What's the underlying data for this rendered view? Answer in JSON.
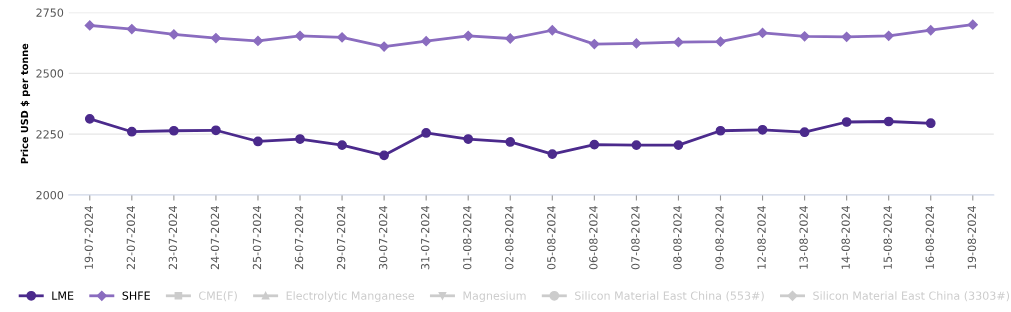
{
  "chart_data": {
    "type": "line",
    "ylabel": "Price USD $ per tonne",
    "categories": [
      "19-07-2024",
      "22-07-2024",
      "23-07-2024",
      "24-07-2024",
      "25-07-2024",
      "26-07-2024",
      "29-07-2024",
      "30-07-2024",
      "31-07-2024",
      "01-08-2024",
      "02-08-2024",
      "05-08-2024",
      "06-08-2024",
      "07-08-2024",
      "08-08-2024",
      "09-08-2024",
      "12-08-2024",
      "13-08-2024",
      "14-08-2024",
      "15-08-2024",
      "16-08-2024",
      "19-08-2024"
    ],
    "series": [
      {
        "name": "LME",
        "color": "#4b2a8c",
        "marker": "circle",
        "values": [
          2313,
          2260,
          2264,
          2266,
          2220,
          2230,
          2205,
          2163,
          2255,
          2230,
          2218,
          2168,
          2207,
          2205,
          2205,
          2264,
          2268,
          2258,
          2300,
          2302,
          2295,
          null
        ]
      },
      {
        "name": "SHFE",
        "color": "#8a6cbf",
        "marker": "diamond",
        "values": [
          2697,
          2682,
          2660,
          2645,
          2633,
          2654,
          2648,
          2610,
          2632,
          2654,
          2643,
          2677,
          2620,
          2623,
          2628,
          2630,
          2666,
          2652,
          2650,
          2654,
          2677,
          2700
        ]
      },
      {
        "name": "CME(F)",
        "color": "#cccccc",
        "marker": "square",
        "values": [
          null,
          null,
          null,
          null,
          null,
          null,
          null,
          null,
          null,
          null,
          null,
          null,
          null,
          null,
          null,
          null,
          null,
          null,
          null,
          null,
          null,
          null
        ]
      },
      {
        "name": "Electrolytic Manganese",
        "color": "#cccccc",
        "marker": "triangle",
        "values": [
          null,
          null,
          null,
          null,
          null,
          null,
          null,
          null,
          null,
          null,
          null,
          null,
          null,
          null,
          null,
          null,
          null,
          null,
          null,
          null,
          null,
          null
        ]
      },
      {
        "name": "Magnesium",
        "color": "#cccccc",
        "marker": "triangle_down",
        "values": [
          null,
          null,
          null,
          null,
          null,
          null,
          null,
          null,
          null,
          null,
          null,
          null,
          null,
          null,
          null,
          null,
          null,
          null,
          null,
          null,
          null,
          null
        ]
      },
      {
        "name": "Silicon Material East China (553#)",
        "color": "#cccccc",
        "marker": "circle",
        "values": [
          null,
          null,
          null,
          null,
          null,
          null,
          null,
          null,
          null,
          null,
          null,
          null,
          null,
          null,
          null,
          null,
          null,
          null,
          null,
          null,
          null,
          null
        ]
      },
      {
        "name": "Silicon Material East China (3303#)",
        "color": "#cccccc",
        "marker": "diamond",
        "values": [
          null,
          null,
          null,
          null,
          null,
          null,
          null,
          null,
          null,
          null,
          null,
          null,
          null,
          null,
          null,
          null,
          null,
          null,
          null,
          null,
          null,
          null
        ]
      }
    ],
    "ylim": [
      2000,
      2750
    ],
    "yticks": [
      2000,
      2250,
      2500,
      2750
    ],
    "grid": "y",
    "legend": "bottom",
    "line_style": "solid"
  }
}
